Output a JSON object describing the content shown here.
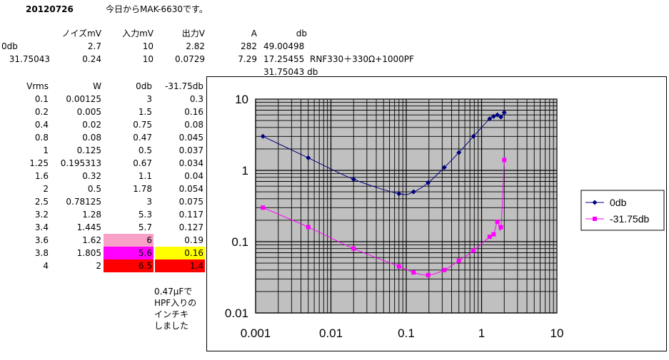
{
  "header": {
    "date": "20120726",
    "title": "今日からMAK-6630です。"
  },
  "summary": {
    "col_headers": [
      "ノイズmV",
      "入力mV",
      "出力V",
      "A",
      "db"
    ],
    "rows": [
      {
        "label": "0db",
        "noise": "2.7",
        "input": "10",
        "output": "2.82",
        "a": "282",
        "db": "49.00498",
        "note": ""
      },
      {
        "label": "31.75043",
        "noise": "0.24",
        "input": "10",
        "output": "0.0729",
        "a": "7.29",
        "db": "17.25455",
        "note": "RNF330＋330Ω+1000PF"
      }
    ],
    "extra": "31.75043 db"
  },
  "table": {
    "headers": [
      "Vrms",
      "W",
      "0db",
      "-31.75db"
    ],
    "rows": [
      [
        "0.1",
        "0.00125",
        "3",
        "0.3"
      ],
      [
        "0.2",
        "0.005",
        "1.5",
        "0.16"
      ],
      [
        "0.4",
        "0.02",
        "0.75",
        "0.08"
      ],
      [
        "0.8",
        "0.08",
        "0.47",
        "0.045"
      ],
      [
        "1",
        "0.125",
        "0.5",
        "0.037"
      ],
      [
        "1.25",
        "0.195313",
        "0.67",
        "0.034"
      ],
      [
        "1.6",
        "0.32",
        "1.1",
        "0.04"
      ],
      [
        "2",
        "0.5",
        "1.78",
        "0.054"
      ],
      [
        "2.5",
        "0.78125",
        "3",
        "0.075"
      ],
      [
        "3.2",
        "1.28",
        "5.3",
        "0.117"
      ],
      [
        "3.4",
        "1.445",
        "5.7",
        "0.127"
      ],
      [
        "3.6",
        "1.62",
        "6",
        "0.19"
      ],
      [
        "3.8",
        "1.805",
        "5.6",
        "0.16"
      ],
      [
        "4",
        "2",
        "6.5",
        "1.4"
      ]
    ],
    "highlights": {
      "11": {
        "c2": "#f8a0c8"
      },
      "12": {
        "c2": "#ff00ff",
        "c3": "#ffff00"
      },
      "13": {
        "c2": "#ff0000",
        "c3": "#ff0000"
      }
    }
  },
  "note_lines": [
    "0.47μFで",
    "HPF入りの",
    "インチキ",
    "しました"
  ],
  "colors": {
    "series_0db": "#000080",
    "series_m31": "#ff00ff",
    "plot_bg": "#c0c0c0"
  },
  "chart_data": {
    "type": "scatter",
    "x_scale": "log",
    "y_scale": "log",
    "xlim": [
      0.001,
      10
    ],
    "ylim": [
      0.01,
      10
    ],
    "x_ticks": [
      "0.001",
      "0.01",
      "0.1",
      "1",
      "10"
    ],
    "y_ticks": [
      "10",
      "1",
      "0.1",
      "0.01"
    ],
    "grid": true,
    "legend_position": "right",
    "series": [
      {
        "name": "0db",
        "marker": "diamond",
        "color": "#000080",
        "points": [
          [
            0.00125,
            3
          ],
          [
            0.005,
            1.5
          ],
          [
            0.02,
            0.75
          ],
          [
            0.08,
            0.47
          ],
          [
            0.125,
            0.5
          ],
          [
            0.195313,
            0.67
          ],
          [
            0.32,
            1.1
          ],
          [
            0.5,
            1.78
          ],
          [
            0.78125,
            3
          ],
          [
            1.28,
            5.3
          ],
          [
            1.445,
            5.7
          ],
          [
            1.62,
            6
          ],
          [
            1.805,
            5.6
          ],
          [
            2,
            6.5
          ]
        ]
      },
      {
        "name": "-31.75db",
        "marker": "square",
        "color": "#ff00ff",
        "points": [
          [
            0.00125,
            0.3
          ],
          [
            0.005,
            0.16
          ],
          [
            0.02,
            0.08
          ],
          [
            0.08,
            0.045
          ],
          [
            0.125,
            0.037
          ],
          [
            0.195313,
            0.034
          ],
          [
            0.32,
            0.04
          ],
          [
            0.5,
            0.054
          ],
          [
            0.78125,
            0.075
          ],
          [
            1.28,
            0.117
          ],
          [
            1.445,
            0.127
          ],
          [
            1.62,
            0.19
          ],
          [
            1.805,
            0.16
          ],
          [
            2,
            1.4
          ]
        ]
      }
    ]
  }
}
